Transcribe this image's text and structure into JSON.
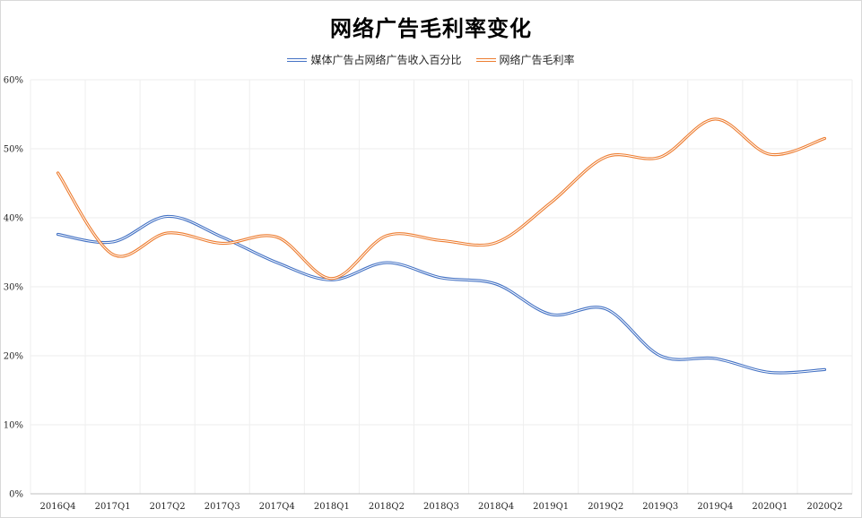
{
  "chart_data": {
    "type": "line",
    "title": "网络广告毛利率变化",
    "categories": [
      "2016Q4",
      "2017Q1",
      "2017Q2",
      "2017Q3",
      "2017Q4",
      "2018Q1",
      "2018Q2",
      "2018Q3",
      "2018Q4",
      "2019Q1",
      "2019Q2",
      "2019Q3",
      "2019Q4",
      "2020Q1",
      "2020Q2"
    ],
    "ylim": [
      0,
      60
    ],
    "yticks": [
      "0%",
      "10%",
      "20%",
      "30%",
      "40%",
      "50%",
      "60%"
    ],
    "grid": true,
    "legend_position": "top",
    "smooth": true,
    "series": [
      {
        "name": "媒体广告占网络广告收入百分比",
        "color": "#4472C4",
        "values": [
          37.6,
          36.5,
          40.2,
          37.2,
          33.5,
          31.0,
          33.5,
          31.3,
          30.4,
          26.0,
          26.8,
          20.0,
          19.6,
          17.6,
          18.0
        ]
      },
      {
        "name": "网络广告毛利率",
        "color": "#ED7D31",
        "values": [
          46.5,
          34.7,
          37.8,
          36.3,
          37.2,
          31.2,
          37.4,
          36.7,
          36.4,
          42.2,
          48.8,
          48.8,
          54.3,
          49.2,
          51.5
        ]
      }
    ]
  }
}
